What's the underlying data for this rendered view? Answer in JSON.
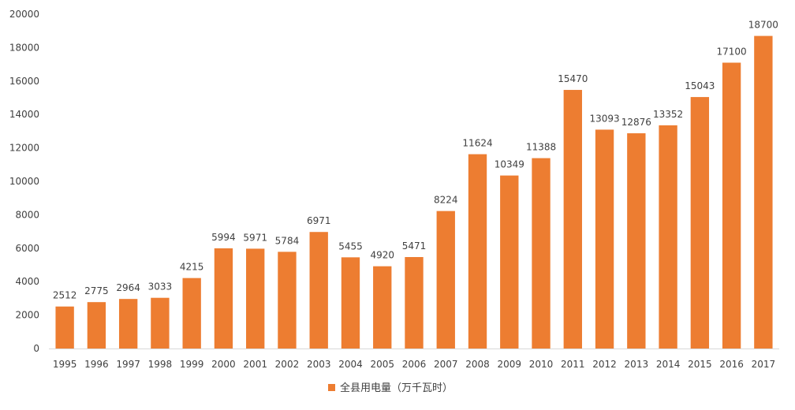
{
  "chart_data": {
    "type": "bar",
    "title": "",
    "xlabel": "",
    "ylabel": "",
    "categories": [
      "1995",
      "1996",
      "1997",
      "1998",
      "1999",
      "2000",
      "2001",
      "2002",
      "2003",
      "2004",
      "2005",
      "2006",
      "2007",
      "2008",
      "2009",
      "2010",
      "2011",
      "2012",
      "2013",
      "2014",
      "2015",
      "2016",
      "2017"
    ],
    "series": [
      {
        "name": "全县用电量（万千瓦时）",
        "color": "#ED7D31",
        "values": [
          2512,
          2775,
          2964,
          3033,
          4215,
          5994,
          5971,
          5784,
          6971,
          5455,
          4920,
          5471,
          8224,
          11624,
          10349,
          11388,
          15470,
          13093,
          12876,
          13352,
          15043,
          17100,
          18700
        ]
      }
    ],
    "ylim": [
      0,
      20000
    ],
    "yticks": [
      0,
      2000,
      4000,
      6000,
      8000,
      10000,
      12000,
      14000,
      16000,
      18000,
      20000
    ],
    "grid": false,
    "data_labels": true,
    "legend": {
      "position": "bottom"
    },
    "axis_color": "#d9d9d9",
    "text_color": "#404040"
  }
}
